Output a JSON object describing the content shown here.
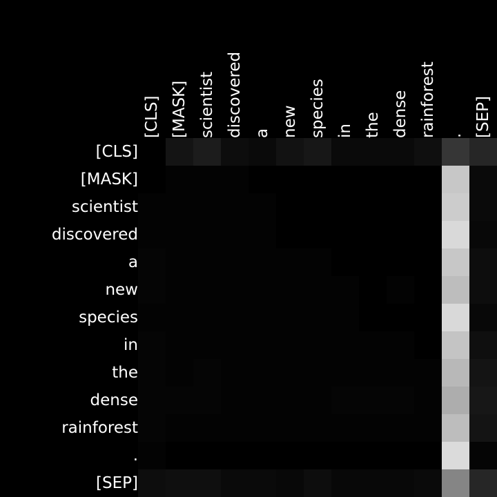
{
  "chart_data": {
    "type": "heatmap",
    "title": "",
    "xlabel": "",
    "ylabel": "",
    "colormap": "grayscale",
    "background": "#000000",
    "value_range": [
      0,
      1
    ],
    "x_tokens": [
      "[CLS]",
      "[MASK]",
      "scientist",
      "discovered",
      "a",
      "new",
      "species",
      "in",
      "the",
      "dense",
      "rainforest",
      ".",
      "[SEP]"
    ],
    "y_tokens": [
      "[CLS]",
      "[MASK]",
      "scientist",
      "discovered",
      "a",
      "new",
      "species",
      "in",
      "the",
      "dense",
      "rainforest",
      ".",
      "[SEP]"
    ],
    "values": [
      [
        0.0,
        0.08,
        0.11,
        0.05,
        0.04,
        0.07,
        0.09,
        0.04,
        0.04,
        0.04,
        0.06,
        0.21,
        0.15
      ],
      [
        0.0,
        0.01,
        0.01,
        0.01,
        0.0,
        0.0,
        0.0,
        0.0,
        0.0,
        0.0,
        0.0,
        0.78,
        0.04
      ],
      [
        0.01,
        0.01,
        0.01,
        0.01,
        0.01,
        0.0,
        0.0,
        0.0,
        0.0,
        0.0,
        0.0,
        0.8,
        0.04
      ],
      [
        0.01,
        0.01,
        0.01,
        0.01,
        0.01,
        0.0,
        0.0,
        0.0,
        0.0,
        0.0,
        0.0,
        0.85,
        0.03
      ],
      [
        0.02,
        0.01,
        0.01,
        0.01,
        0.01,
        0.01,
        0.01,
        0.0,
        0.0,
        0.0,
        0.0,
        0.78,
        0.05
      ],
      [
        0.02,
        0.01,
        0.01,
        0.01,
        0.01,
        0.01,
        0.01,
        0.01,
        0.0,
        0.01,
        0.0,
        0.74,
        0.05
      ],
      [
        0.01,
        0.01,
        0.01,
        0.01,
        0.01,
        0.01,
        0.01,
        0.01,
        0.0,
        0.0,
        0.0,
        0.85,
        0.03
      ],
      [
        0.02,
        0.01,
        0.01,
        0.01,
        0.01,
        0.01,
        0.01,
        0.01,
        0.01,
        0.01,
        0.0,
        0.77,
        0.06
      ],
      [
        0.02,
        0.01,
        0.02,
        0.01,
        0.01,
        0.01,
        0.01,
        0.01,
        0.01,
        0.01,
        0.01,
        0.72,
        0.08
      ],
      [
        0.02,
        0.02,
        0.02,
        0.01,
        0.01,
        0.01,
        0.01,
        0.02,
        0.02,
        0.02,
        0.01,
        0.68,
        0.09
      ],
      [
        0.02,
        0.01,
        0.01,
        0.01,
        0.01,
        0.01,
        0.01,
        0.01,
        0.01,
        0.01,
        0.01,
        0.74,
        0.08
      ],
      [
        0.01,
        0.0,
        0.0,
        0.0,
        0.0,
        0.0,
        0.0,
        0.0,
        0.0,
        0.0,
        0.0,
        0.86,
        0.02
      ],
      [
        0.05,
        0.06,
        0.06,
        0.04,
        0.04,
        0.03,
        0.05,
        0.03,
        0.03,
        0.03,
        0.04,
        0.52,
        0.15
      ]
    ]
  }
}
